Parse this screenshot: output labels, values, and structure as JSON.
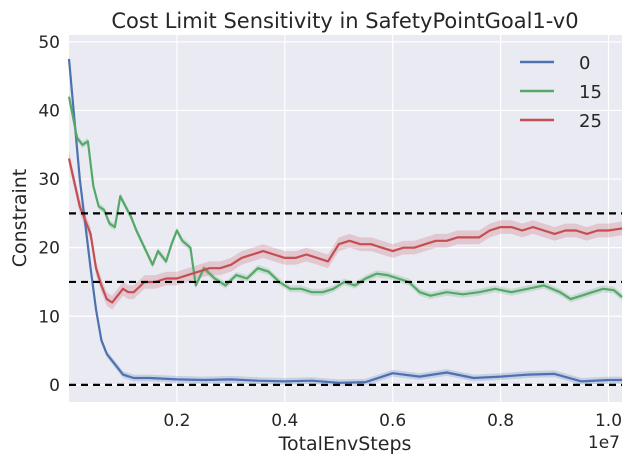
{
  "chart_data": {
    "type": "line",
    "title": "Cost Limit Sensitivity in SafetyPointGoal1-v0",
    "xlabel": "TotalEnvSteps",
    "ylabel": "Constraint",
    "x_offset_text": "1e7",
    "xlim": [
      0,
      1.025
    ],
    "ylim": [
      -2.5,
      51
    ],
    "xticks": [
      0.2,
      0.4,
      0.6,
      0.8,
      1.0
    ],
    "xtick_labels": [
      "0.2",
      "0.4",
      "0.6",
      "0.8",
      "1.0"
    ],
    "yticks": [
      0,
      10,
      20,
      30,
      40,
      50
    ],
    "ytick_labels": [
      "0",
      "10",
      "20",
      "30",
      "40",
      "50"
    ],
    "grid": true,
    "legend_position": "top-right",
    "reference_lines": [
      0,
      15,
      25
    ],
    "series": [
      {
        "name": "0",
        "color": "#4c72b0",
        "x": [
          0.0,
          0.02,
          0.04,
          0.05,
          0.06,
          0.07,
          0.08,
          0.1,
          0.12,
          0.15,
          0.2,
          0.25,
          0.3,
          0.35,
          0.4,
          0.45,
          0.5,
          0.55,
          0.6,
          0.65,
          0.7,
          0.75,
          0.8,
          0.85,
          0.9,
          0.95,
          1.0,
          1.025
        ],
        "y": [
          47.5,
          30.0,
          17.0,
          11.0,
          6.5,
          4.5,
          3.5,
          1.5,
          1.0,
          1.0,
          0.8,
          0.7,
          0.8,
          0.6,
          0.5,
          0.6,
          0.3,
          0.4,
          1.7,
          1.2,
          1.8,
          1.0,
          1.2,
          1.5,
          1.6,
          0.5,
          0.7,
          0.7
        ]
      },
      {
        "name": "15",
        "color": "#55a868",
        "x": [
          0.0,
          0.015,
          0.025,
          0.035,
          0.045,
          0.055,
          0.065,
          0.075,
          0.085,
          0.095,
          0.105,
          0.115,
          0.125,
          0.14,
          0.155,
          0.165,
          0.18,
          0.19,
          0.2,
          0.21,
          0.225,
          0.235,
          0.25,
          0.27,
          0.29,
          0.31,
          0.33,
          0.35,
          0.37,
          0.39,
          0.41,
          0.43,
          0.45,
          0.47,
          0.49,
          0.51,
          0.53,
          0.55,
          0.57,
          0.59,
          0.61,
          0.63,
          0.65,
          0.67,
          0.7,
          0.73,
          0.76,
          0.79,
          0.82,
          0.85,
          0.88,
          0.91,
          0.93,
          0.95,
          0.97,
          0.99,
          1.01,
          1.025
        ],
        "y": [
          42.0,
          36.0,
          35.0,
          35.5,
          29.0,
          26.0,
          25.5,
          23.5,
          23.0,
          27.5,
          26.0,
          24.5,
          22.5,
          20.0,
          17.5,
          19.5,
          18.0,
          20.5,
          22.5,
          21.0,
          20.0,
          14.5,
          17.0,
          15.5,
          14.5,
          16.0,
          15.5,
          17.0,
          16.5,
          15.0,
          14.0,
          14.0,
          13.5,
          13.5,
          14.0,
          15.0,
          14.5,
          15.5,
          16.2,
          16.0,
          15.5,
          15.0,
          13.5,
          13.0,
          13.5,
          13.2,
          13.5,
          14.0,
          13.5,
          14.0,
          14.5,
          13.5,
          12.5,
          13.0,
          13.5,
          14.0,
          13.8,
          12.8
        ]
      },
      {
        "name": "25",
        "color": "#c44e52",
        "x": [
          0.0,
          0.02,
          0.04,
          0.05,
          0.06,
          0.07,
          0.08,
          0.09,
          0.1,
          0.11,
          0.12,
          0.14,
          0.16,
          0.18,
          0.2,
          0.22,
          0.24,
          0.26,
          0.28,
          0.3,
          0.32,
          0.34,
          0.36,
          0.38,
          0.4,
          0.42,
          0.44,
          0.46,
          0.48,
          0.5,
          0.52,
          0.54,
          0.56,
          0.58,
          0.6,
          0.62,
          0.64,
          0.66,
          0.68,
          0.7,
          0.72,
          0.74,
          0.76,
          0.78,
          0.8,
          0.82,
          0.84,
          0.86,
          0.88,
          0.9,
          0.92,
          0.94,
          0.96,
          0.98,
          1.0,
          1.025
        ],
        "y": [
          33.0,
          26.0,
          22.0,
          17.0,
          14.5,
          12.5,
          12.0,
          13.0,
          14.0,
          13.5,
          13.5,
          15.0,
          15.0,
          15.5,
          15.5,
          16.0,
          16.5,
          17.0,
          17.0,
          17.5,
          18.5,
          19.0,
          19.5,
          19.0,
          18.5,
          18.5,
          19.0,
          18.5,
          18.0,
          20.5,
          21.0,
          20.5,
          20.5,
          20.0,
          19.5,
          20.0,
          20.0,
          20.5,
          21.0,
          21.0,
          21.5,
          21.5,
          21.5,
          22.5,
          23.0,
          23.0,
          22.5,
          23.0,
          22.5,
          22.0,
          22.5,
          22.5,
          22.0,
          22.5,
          22.5,
          22.8
        ]
      }
    ]
  }
}
